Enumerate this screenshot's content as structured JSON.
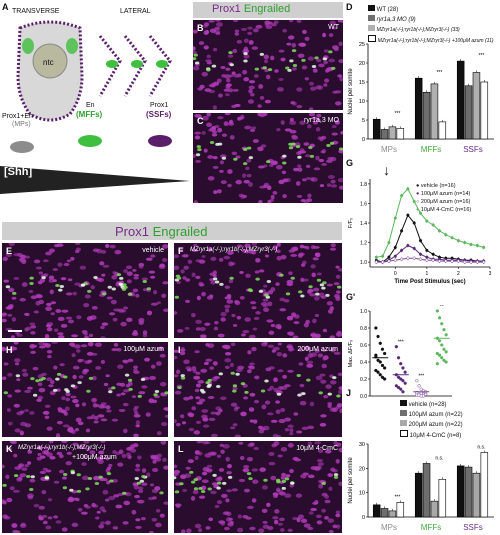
{
  "panel_a": {
    "letter": "A",
    "transverse": "TRANSVERSE",
    "lateral": "LATERAL",
    "ntc": "ntc",
    "mps_label_top": "Prox1+En",
    "mps_label_bottom": "(MPs)",
    "mffs_label_top": "En",
    "mffs_label_bottom": "(MFFs)",
    "ssfs_label_top": "Prox1",
    "ssfs_label_bottom": "(SSFs)",
    "shh": "[Shh]",
    "colors": {
      "grey": "#8c8c8c",
      "green": "#3fbf3f",
      "purple": "#5a1f6b"
    }
  },
  "header_top": {
    "prox": "Prox1",
    "en": "Engrailed"
  },
  "header_mid": {
    "prox": "Prox1",
    "en": "Engrailed"
  },
  "micro": {
    "b": {
      "letter": "B",
      "text": "WT"
    },
    "c": {
      "letter": "C",
      "text": "ryr1a,3 MO"
    },
    "e": {
      "letter": "E",
      "text": "vehicle"
    },
    "f": {
      "letter": "F",
      "text": "MZryr1a(-/-);ryr1b(-/-);MZryr3(-/-)"
    },
    "h": {
      "letter": "H",
      "text": "100μM azum"
    },
    "i": {
      "letter": "I",
      "text": "200μM azum"
    },
    "k": {
      "letter": "K",
      "text": "MZryr1a(-/-);ryr1b(-/-);MZryr3(-/-)",
      "text2": "+100μM azum"
    },
    "l": {
      "letter": "L",
      "text": "10μM 4-CmC"
    }
  },
  "chart_d": {
    "letter": "D",
    "chart_data": {
      "type": "bar",
      "ylabel": "Nuclei per somite",
      "ylim": [
        0,
        25
      ],
      "yticks": [
        0,
        5,
        10,
        15,
        20,
        25
      ],
      "categories": [
        "MPs",
        "MFFs",
        "SSFs"
      ],
      "series": [
        {
          "name": "WT (28)",
          "color": "#111111",
          "values": [
            5.2,
            16.0,
            20.5
          ]
        },
        {
          "name": "ryr1a,3 MO (9)",
          "color": "#6e6e6e",
          "values": [
            2.5,
            12.3,
            14.0
          ]
        },
        {
          "name": "MZryr1a;ryr1b;MZryr3 (33)",
          "color": "#b0b0b0",
          "values": [
            3.2,
            14.5,
            17.5
          ]
        },
        {
          "name": "MZryr1a;ryr1b;MZryr3 +100μM azum (11)",
          "color": "#ffffff",
          "values": [
            2.8,
            4.5,
            15.0
          ]
        }
      ]
    },
    "legend": [
      "WT (28)",
      "ryr1a,3 MO (9)",
      "MZryr1a(-/-);ryr1b(-/-);MZryr3(-/-) (33)",
      "MZryr1a(-/-);ryr1b(-/-);MZryr3(-/-) +100μM azum (11)"
    ],
    "sig": "***"
  },
  "chart_g": {
    "letter": "G",
    "chart_data": {
      "type": "line",
      "xlabel": "Time Post Stimulus (sec)",
      "ylabel": "F/F₀",
      "xlim": [
        -0.8,
        3.0
      ],
      "ylim": [
        0.95,
        1.85
      ],
      "xticks": [
        0,
        1,
        2,
        3
      ],
      "yticks": [
        1.0,
        1.2,
        1.4,
        1.6,
        1.8
      ],
      "x": [
        -0.6,
        -0.4,
        -0.2,
        0.0,
        0.2,
        0.4,
        0.6,
        0.8,
        1.0,
        1.2,
        1.4,
        1.6,
        1.8,
        2.0,
        2.2,
        2.4,
        2.6,
        2.8
      ],
      "series": [
        {
          "name": "vehicle (n=16)",
          "color": "#111111",
          "values": [
            1.02,
            1.0,
            1.05,
            1.15,
            1.32,
            1.48,
            1.4,
            1.22,
            1.12,
            1.08,
            1.05,
            1.04,
            1.04,
            1.03,
            1.02,
            1.02,
            1.01,
            1.01
          ]
        },
        {
          "name": "100μM azum (n=14)",
          "color": "#5a2a7a",
          "values": [
            1.01,
            1.0,
            1.02,
            1.06,
            1.12,
            1.17,
            1.14,
            1.08,
            1.05,
            1.03,
            1.03,
            1.02,
            1.02,
            1.02,
            1.02,
            1.01,
            1.01,
            1.01
          ]
        },
        {
          "name": "200μM azum (n=16)",
          "color": "#7a4a9a",
          "values": [
            1.0,
            1.0,
            1.01,
            1.02,
            1.03,
            1.04,
            1.04,
            1.03,
            1.02,
            1.02,
            1.01,
            1.01,
            1.01,
            1.01,
            1.0,
            1.0,
            1.0,
            1.0
          ]
        },
        {
          "name": "10μM 4-CmC (n=16)",
          "color": "#5cb85c",
          "values": [
            1.05,
            1.06,
            1.2,
            1.45,
            1.68,
            1.75,
            1.62,
            1.5,
            1.42,
            1.38,
            1.32,
            1.28,
            1.25,
            1.22,
            1.2,
            1.18,
            1.17,
            1.15
          ]
        }
      ]
    }
  },
  "chart_g2": {
    "letter": "G'",
    "chart_data": {
      "type": "scatter",
      "ylabel": "Max. ΔF/F₀",
      "ylim": [
        0,
        1.0
      ],
      "yticks": [
        0.0,
        0.2,
        0.4,
        0.6,
        0.8,
        1.0
      ],
      "groups": [
        "vehicle",
        "100μM azum",
        "200μM azum",
        "10μM 4-CmC"
      ],
      "means": [
        0.45,
        0.25,
        0.05,
        0.68
      ],
      "points": [
        [
          0.8,
          0.7,
          0.62,
          0.55,
          0.5,
          0.46,
          0.42,
          0.4,
          0.36,
          0.33,
          0.3,
          0.28,
          0.25,
          0.22,
          0.2,
          0.48
        ],
        [
          0.58,
          0.45,
          0.38,
          0.33,
          0.28,
          0.25,
          0.22,
          0.2,
          0.18,
          0.15,
          0.12,
          0.1,
          0.08,
          0.05
        ],
        [
          0.18,
          0.12,
          0.08,
          0.06,
          0.05,
          0.04,
          0.03,
          0.03,
          0.02,
          0.02,
          0.01,
          0.01,
          0.0,
          0.0,
          0.02,
          0.04
        ],
        [
          1.0,
          0.92,
          0.85,
          0.78,
          0.72,
          0.68,
          0.65,
          0.6,
          0.55,
          0.52,
          0.5,
          0.48,
          0.45,
          0.42,
          0.4,
          0.38
        ]
      ],
      "colors": [
        "#111111",
        "#5a2a7a",
        "#7a4a9a",
        "#5cb85c"
      ],
      "sig": [
        "",
        "***",
        "***",
        "**"
      ]
    }
  },
  "chart_j": {
    "letter": "J",
    "chart_data": {
      "type": "bar",
      "ylabel": "Nuclei per somite",
      "ylim": [
        0,
        30
      ],
      "yticks": [
        0,
        10,
        20,
        30
      ],
      "categories": [
        "MPs",
        "MFFs",
        "SSFs"
      ],
      "series": [
        {
          "name": "vehicle (n=28)",
          "color": "#111111",
          "values": [
            5.0,
            18.0,
            21.0
          ]
        },
        {
          "name": "100μM azum (n=22)",
          "color": "#6e6e6e",
          "values": [
            3.5,
            22.0,
            20.5
          ]
        },
        {
          "name": "200μM azum (n=22)",
          "color": "#a8a8a8",
          "values": [
            2.5,
            6.5,
            18.0
          ]
        },
        {
          "name": "10μM 4-CmC (n=8)",
          "color": "#ffffff",
          "values": [
            6.0,
            15.5,
            26.5
          ]
        }
      ]
    },
    "legend": [
      "vehicle (n=28)",
      "100μM azum (n=22)",
      "200μM azum (n=22)",
      "10μM 4-CmC (n=8)"
    ],
    "sig": [
      "***",
      "n.s.",
      "n.s."
    ]
  },
  "arrow": "↓",
  "scale_bar": ""
}
